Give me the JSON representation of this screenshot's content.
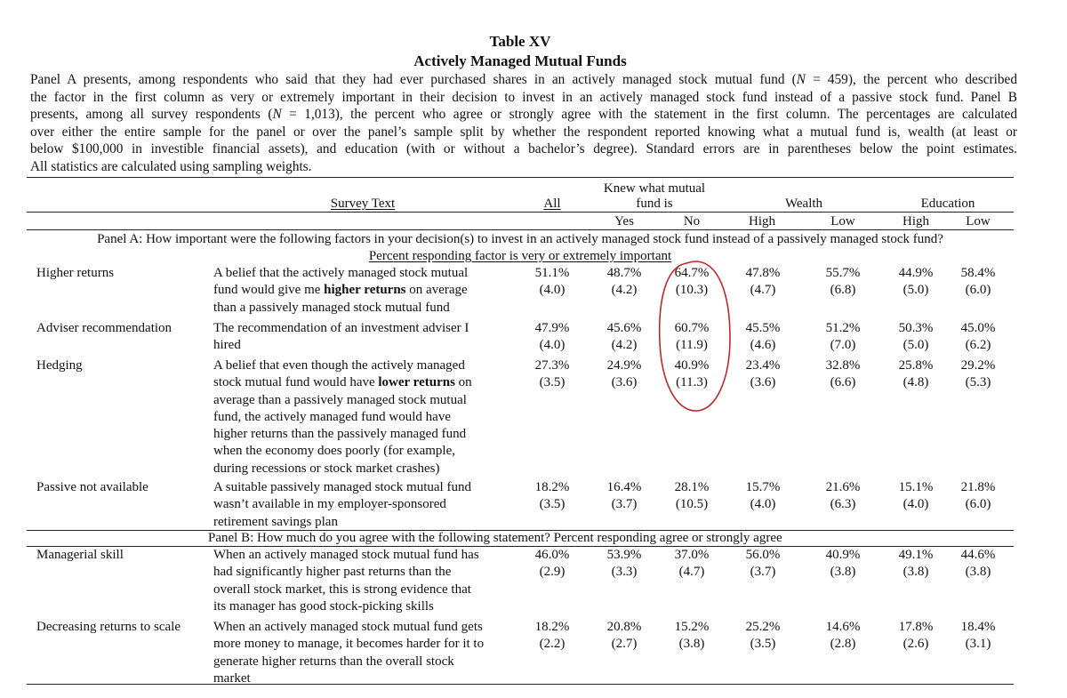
{
  "table": {
    "number": "Table XV",
    "title": "Actively Managed Mutual Funds",
    "caption_lines": [
      "Panel A presents, among respondents who said that they had ever purchased shares in an actively managed stock mutual fund (N = 459), the percent who described",
      "the factor in the first column as very or extremely important in their decision to invest in an actively managed stock fund instead of a passive stock fund. Panel B",
      "presents, among all survey respondents (N = 1,013), the percent who agree or strongly agree with the statement in the first column. The percentages are calculated",
      "over either the entire sample for the panel or over the panel’s sample split by whether the respondent reported knowing what a mutual fund is, wealth (at least or",
      "below $100,000 in investible financial assets), and education (with or without a bachelor’s degree). Standard errors are in parentheses below the point estimates.",
      "All statistics are calculated using sampling weights."
    ],
    "headers": {
      "survey_text": "Survey Text",
      "all": "All",
      "knew_line1": "Knew what mutual",
      "knew_line2": "fund is",
      "yes": "Yes",
      "no": "No",
      "wealth": "Wealth",
      "high": "High",
      "low": "Low",
      "education": "Education",
      "edu_high": "High",
      "edu_low": "Low"
    },
    "panel_a": {
      "title": "Panel A: How important were the following factors in your decision(s) to invest in an actively managed stock fund instead of a passively managed stock fund?",
      "subtitle": "Percent responding factor is very or extremely important",
      "rows": [
        {
          "factor": "Higher returns",
          "text_lines": [
            "A belief that the actively managed stock mutual",
            "fund would give me |higher returns| on average",
            "than a passively managed stock mutual fund"
          ],
          "values": [
            "51.1%",
            "48.7%",
            "64.7%",
            "47.8%",
            "55.7%",
            "44.9%",
            "58.4%"
          ],
          "errors": [
            "(4.0)",
            "(4.2)",
            "(10.3)",
            "(4.7)",
            "(6.8)",
            "(5.0)",
            "(6.0)"
          ]
        },
        {
          "factor": "Adviser recommendation",
          "text_lines": [
            "The recommendation of an investment adviser I",
            "hired"
          ],
          "values": [
            "47.9%",
            "45.6%",
            "60.7%",
            "45.5%",
            "51.2%",
            "50.3%",
            "45.0%"
          ],
          "errors": [
            "(4.0)",
            "(4.2)",
            "(11.9)",
            "(4.6)",
            "(7.0)",
            "(5.0)",
            "(6.2)"
          ]
        },
        {
          "factor": "Hedging",
          "text_lines": [
            "A belief that even though the actively managed",
            "stock mutual fund would have |lower returns| on",
            "average than a passively managed stock mutual",
            "fund, the actively managed fund would have",
            "higher returns than the passively managed fund",
            "when the economy does poorly (for example,",
            "during recessions or stock market crashes)"
          ],
          "values": [
            "27.3%",
            "24.9%",
            "40.9%",
            "23.4%",
            "32.8%",
            "25.8%",
            "29.2%"
          ],
          "errors": [
            "(3.5)",
            "(3.6)",
            "(11.3)",
            "(3.6)",
            "(6.6)",
            "(4.8)",
            "(5.3)"
          ]
        },
        {
          "factor": "Passive not available",
          "text_lines": [
            "A suitable passively managed stock mutual fund",
            "wasn’t available in my employer-sponsored",
            "retirement savings plan"
          ],
          "values": [
            "18.2%",
            "16.4%",
            "28.1%",
            "15.7%",
            "21.6%",
            "15.1%",
            "21.8%"
          ],
          "errors": [
            "(3.5)",
            "(3.7)",
            "(10.5)",
            "(4.0)",
            "(6.3)",
            "(4.0)",
            "(6.0)"
          ]
        }
      ]
    },
    "panel_b": {
      "title": "Panel B: How much do you agree with the following statement? Percent responding agree or strongly agree",
      "rows": [
        {
          "factor": "Managerial skill",
          "text_lines": [
            "When an actively managed stock mutual fund has",
            "had significantly higher past returns than the",
            "overall stock market, this is strong evidence that",
            "its manager has good stock-picking skills"
          ],
          "values": [
            "46.0%",
            "53.9%",
            "37.0%",
            "56.0%",
            "40.9%",
            "49.1%",
            "44.6%"
          ],
          "errors": [
            "(2.9)",
            "(3.3)",
            "(4.7)",
            "(3.7)",
            "(3.8)",
            "(3.8)",
            "(3.8)"
          ]
        },
        {
          "factor": "Decreasing returns to scale",
          "text_lines": [
            "When an actively managed stock mutual fund gets",
            "more money to manage, it becomes harder for it to",
            "generate higher returns than the overall stock",
            "market"
          ],
          "values": [
            "18.2%",
            "20.8%",
            "15.2%",
            "25.2%",
            "14.6%",
            "17.8%",
            "18.4%"
          ],
          "errors": [
            "(2.2)",
            "(2.7)",
            "(3.8)",
            "(3.5)",
            "(2.8)",
            "(2.6)",
            "(3.1)"
          ]
        }
      ]
    },
    "annotation": {
      "color": "#c0272d"
    }
  }
}
